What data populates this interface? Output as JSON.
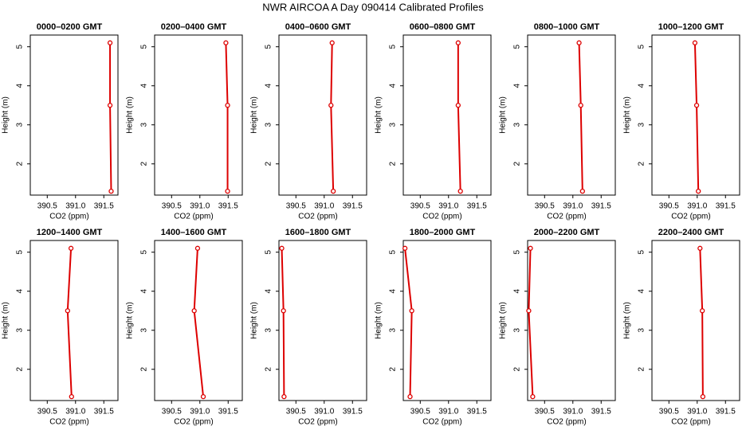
{
  "title": "NWR AIRCOA A  Day 090414  Calibrated Profiles",
  "chart_data": [
    {
      "type": "line",
      "title": "0000–0200 GMT",
      "x_label": "CO2 (ppm)",
      "y_label": "Height (m)",
      "x": [
        391.63,
        391.61,
        391.61
      ],
      "values": [
        1.3,
        3.5,
        5.1
      ],
      "color": "#dd0000",
      "xlim": [
        390.2,
        391.75
      ],
      "ylim": [
        1.2,
        5.3
      ],
      "xticks": [
        390.5,
        {
          "value": 391,
          "label": "391.0"
        },
        391.5
      ],
      "yticks": [
        2,
        3,
        4,
        5
      ]
    },
    {
      "type": "line",
      "title": "0200–0400 GMT",
      "x_label": "CO2 (ppm)",
      "y_label": "Height (m)",
      "x": [
        391.49,
        391.49,
        391.46
      ],
      "values": [
        1.3,
        3.5,
        5.1
      ],
      "color": "#dd0000",
      "xlim": [
        390.2,
        391.75
      ],
      "ylim": [
        1.2,
        5.3
      ],
      "xticks": [
        390.5,
        {
          "value": 391,
          "label": "391.0"
        },
        391.5
      ],
      "yticks": [
        2,
        3,
        4,
        5
      ]
    },
    {
      "type": "line",
      "title": "0400–0600 GMT",
      "x_label": "CO2 (ppm)",
      "y_label": "Height (m)",
      "x": [
        391.16,
        391.12,
        391.14
      ],
      "values": [
        1.3,
        3.5,
        5.1
      ],
      "color": "#dd0000",
      "xlim": [
        390.2,
        391.75
      ],
      "ylim": [
        1.2,
        5.3
      ],
      "xticks": [
        390.5,
        {
          "value": 391,
          "label": "391.0"
        },
        391.5
      ],
      "yticks": [
        2,
        3,
        4,
        5
      ]
    },
    {
      "type": "line",
      "title": "0600–0800 GMT",
      "x_label": "CO2 (ppm)",
      "y_label": "Height (m)",
      "x": [
        391.21,
        391.17,
        391.17
      ],
      "values": [
        1.3,
        3.5,
        5.1
      ],
      "color": "#dd0000",
      "xlim": [
        390.2,
        391.75
      ],
      "ylim": [
        1.2,
        5.3
      ],
      "xticks": [
        390.5,
        {
          "value": 391,
          "label": "391.0"
        },
        391.5
      ],
      "yticks": [
        2,
        3,
        4,
        5
      ]
    },
    {
      "type": "line",
      "title": "0800–1000 GMT",
      "x_label": "CO2 (ppm)",
      "y_label": "Height (m)",
      "x": [
        391.17,
        391.14,
        391.11
      ],
      "values": [
        1.3,
        3.5,
        5.1
      ],
      "color": "#dd0000",
      "xlim": [
        390.2,
        391.75
      ],
      "ylim": [
        1.2,
        5.3
      ],
      "xticks": [
        390.5,
        {
          "value": 391,
          "label": "391.0"
        },
        391.5
      ],
      "yticks": [
        2,
        3,
        4,
        5
      ]
    },
    {
      "type": "line",
      "title": "1000–1200 GMT",
      "x_label": "CO2 (ppm)",
      "y_label": "Height (m)",
      "x": [
        391.02,
        390.99,
        390.96
      ],
      "values": [
        1.3,
        3.5,
        5.1
      ],
      "color": "#dd0000",
      "xlim": [
        390.2,
        391.75
      ],
      "ylim": [
        1.2,
        5.3
      ],
      "xticks": [
        390.5,
        {
          "value": 391,
          "label": "391.0"
        },
        391.5
      ],
      "yticks": [
        2,
        3,
        4,
        5
      ]
    },
    {
      "type": "line",
      "title": "1200–1400 GMT",
      "x_label": "CO2 (ppm)",
      "y_label": "Height (m)",
      "x": [
        390.93,
        390.86,
        390.92
      ],
      "values": [
        1.3,
        3.5,
        5.1
      ],
      "color": "#dd0000",
      "xlim": [
        390.2,
        391.75
      ],
      "ylim": [
        1.2,
        5.3
      ],
      "xticks": [
        390.5,
        {
          "value": 391,
          "label": "391.0"
        },
        391.5
      ],
      "yticks": [
        2,
        3,
        4,
        5
      ]
    },
    {
      "type": "line",
      "title": "1400–1600 GMT",
      "x_label": "CO2 (ppm)",
      "y_label": "Height (m)",
      "x": [
        391.06,
        390.9,
        390.96
      ],
      "values": [
        1.3,
        3.5,
        5.1
      ],
      "color": "#dd0000",
      "xlim": [
        390.2,
        391.75
      ],
      "ylim": [
        1.2,
        5.3
      ],
      "xticks": [
        390.5,
        {
          "value": 391,
          "label": "391.0"
        },
        391.5
      ],
      "yticks": [
        2,
        3,
        4,
        5
      ]
    },
    {
      "type": "line",
      "title": "1600–1800 GMT",
      "x_label": "CO2 (ppm)",
      "y_label": "Height (m)",
      "x": [
        390.29,
        390.28,
        390.25
      ],
      "values": [
        1.3,
        3.5,
        5.1
      ],
      "color": "#dd0000",
      "xlim": [
        390.2,
        391.75
      ],
      "ylim": [
        1.2,
        5.3
      ],
      "xticks": [
        390.5,
        {
          "value": 391,
          "label": "391.0"
        },
        391.5
      ],
      "yticks": [
        2,
        3,
        4,
        5
      ]
    },
    {
      "type": "line",
      "title": "1800–2000 GMT",
      "x_label": "CO2 (ppm)",
      "y_label": "Height (m)",
      "x": [
        390.32,
        390.35,
        390.23
      ],
      "values": [
        1.3,
        3.5,
        5.1
      ],
      "color": "#dd0000",
      "xlim": [
        390.2,
        391.75
      ],
      "ylim": [
        1.2,
        5.3
      ],
      "xticks": [
        390.5,
        {
          "value": 391,
          "label": "391.0"
        },
        391.5
      ],
      "yticks": [
        2,
        3,
        4,
        5
      ]
    },
    {
      "type": "line",
      "title": "2000–2200 GMT",
      "x_label": "CO2 (ppm)",
      "y_label": "Height (m)",
      "x": [
        390.29,
        390.22,
        390.25
      ],
      "values": [
        1.3,
        3.5,
        5.1
      ],
      "color": "#dd0000",
      "xlim": [
        390.2,
        391.75
      ],
      "ylim": [
        1.2,
        5.3
      ],
      "xticks": [
        390.5,
        {
          "value": 391,
          "label": "391.0"
        },
        391.5
      ],
      "yticks": [
        2,
        3,
        4,
        5
      ]
    },
    {
      "type": "line",
      "title": "2200–2400 GMT",
      "x_label": "CO2 (ppm)",
      "y_label": "Height (m)",
      "x": [
        391.1,
        391.09,
        391.05
      ],
      "values": [
        1.3,
        3.5,
        5.1
      ],
      "color": "#dd0000",
      "xlim": [
        390.2,
        391.75
      ],
      "ylim": [
        1.2,
        5.3
      ],
      "xticks": [
        390.5,
        {
          "value": 391,
          "label": "391.0"
        },
        391.5
      ],
      "yticks": [
        2,
        3,
        4,
        5
      ]
    }
  ]
}
